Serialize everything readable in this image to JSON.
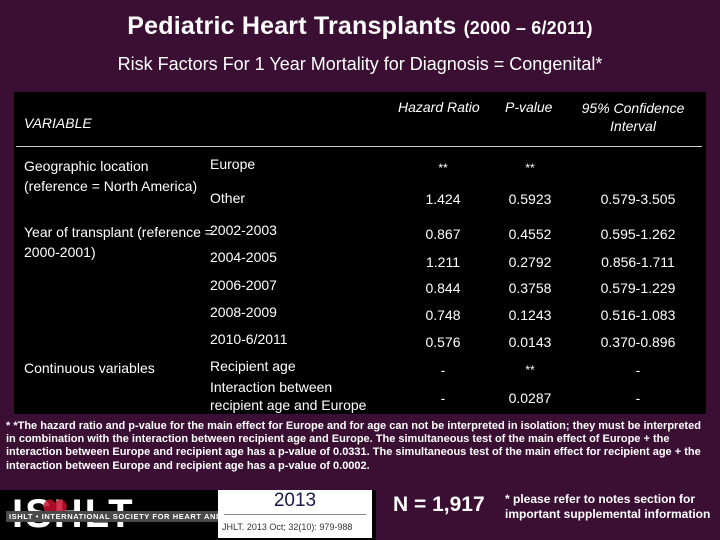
{
  "title": {
    "main": "Pediatric Heart Transplants",
    "years": "(2000 – 6/2011)"
  },
  "subtitle": "Risk Factors For 1 Year Mortality for Diagnosis = Congenital*",
  "table": {
    "headers": {
      "variable": "VARIABLE",
      "hazard_ratio": "Hazard Ratio",
      "p_value": "P-value",
      "ci_line1": "95% Confidence",
      "ci_line2": "Interval"
    },
    "groups": [
      {
        "label": "Geographic location (reference = North America)"
      },
      {
        "label": "Year of transplant (reference = 2000-2001)"
      },
      {
        "label": "Continuous variables"
      }
    ],
    "rows": [
      {
        "level": "Europe",
        "hr": "**",
        "p": "**",
        "ci": ""
      },
      {
        "level": "Other",
        "hr": "1.424",
        "p": "0.5923",
        "ci": "0.579-3.505"
      },
      {
        "level": "2002-2003",
        "hr": "0.867",
        "p": "0.4552",
        "ci": "0.595-1.262"
      },
      {
        "level": "2004-2005",
        "hr": "1.211",
        "p": "0.2792",
        "ci": "0.856-1.711"
      },
      {
        "level": "2006-2007",
        "hr": "0.844",
        "p": "0.3758",
        "ci": "0.579-1.229"
      },
      {
        "level": "2008-2009",
        "hr": "0.748",
        "p": "0.1243",
        "ci": "0.516-1.083"
      },
      {
        "level": "2010-6/2011",
        "hr": "0.576",
        "p": "0.0143",
        "ci": "0.370-0.896"
      },
      {
        "level": "Recipient age",
        "hr": "-",
        "p": "**",
        "ci": "-"
      },
      {
        "level_line1": "Interaction between",
        "level_line2": "recipient age and Europe",
        "hr": "-",
        "p": "0.0287",
        "ci": "-"
      }
    ]
  },
  "footnote": "* *The hazard ratio and p-value for the main effect for Europe and for age can not be interpreted in isolation; they must be interpreted in combination with the interaction between recipient age and Europe. The simultaneous test of the main effect of Europe + the interaction between Europe and recipient age has a p-value of 0.0331. The simultaneous test of the main effect for recipient age + the interaction between Europe and recipient age has a p-value of 0.0002.",
  "footer": {
    "logo": "ISHLT",
    "society": "ISHLT • INTERNATIONAL SOCIETY FOR HEART AND LUNG TRANSPLANTATION",
    "year": "2013",
    "citation": "JHLT. 2013 Oct; 32(10): 979-988",
    "n": "N = 1,917",
    "notes": "* please refer to notes section for important supplemental information"
  },
  "colors": {
    "background": "#3a0f33",
    "panel": "#000000",
    "text": "#ffffff"
  }
}
